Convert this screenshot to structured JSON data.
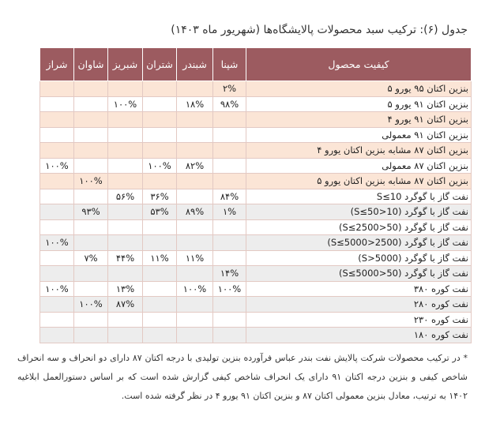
{
  "title": "جدول (۶): ترکیب سبد محصولات پالایشگاه‌ها (شهریور ماه ۱۴۰۳)",
  "table": {
    "header": [
      "کیفیت محصول",
      "شپنا",
      "شبندر",
      "شتران",
      "شبریز",
      "شاوان",
      "شراز"
    ],
    "rows": [
      [
        "بنزین اکتان ۹۵ یورو ۵",
        "۲%",
        null,
        null,
        null,
        null,
        null
      ],
      [
        "بنزین اکتان ۹۱ یورو ۵",
        "۹۸%",
        "۱۸%",
        null,
        "۱۰۰%",
        null,
        null
      ],
      [
        "بنزین اکتان ۹۱ یورو ۴",
        null,
        null,
        null,
        null,
        null,
        null
      ],
      [
        "بنزین اکتان ۹۱ معمولی",
        null,
        null,
        null,
        null,
        null,
        null
      ],
      [
        "بنزین اکتان ۸۷ مشابه بنزین اکتان یورو ۴",
        null,
        null,
        null,
        null,
        null,
        null
      ],
      [
        "بنزین اکتان ۸۷ معمولی",
        null,
        "۸۲%",
        "۱۰۰%",
        null,
        null,
        "۱۰۰%"
      ],
      [
        "بنزین اکتان ۸۷ مشابه بنزین اکتان یورو ۵",
        null,
        null,
        null,
        null,
        "۱۰۰%",
        null
      ],
      [
        "نفت گاز با گوگرد S≤10",
        "۸۴%",
        null,
        "۳۶%",
        "۵۶%",
        null,
        null
      ],
      [
        "نفت گاز با گوگرد (10<S≤50)",
        "۱%",
        "۸۹%",
        "۵۳%",
        null,
        "۹۳%",
        null
      ],
      [
        "نفت گاز با گوگرد (50<S≤2500)",
        null,
        null,
        null,
        null,
        null,
        null
      ],
      [
        "نفت گاز با گوگرد (2500<S≤5000)",
        null,
        null,
        null,
        null,
        null,
        "۱۰۰%"
      ],
      [
        "نفت گاز با گوگرد (S>5000)",
        null,
        "۱۱%",
        "۱۱%",
        "۴۴%",
        "۷%",
        null
      ],
      [
        "نفت گاز با گوگرد (50<S≤5000)",
        "۱۴%",
        null,
        null,
        null,
        null,
        null
      ],
      [
        "نفت کوره ۳۸۰",
        "۱۰۰%",
        "۱۰۰%",
        null,
        "۱۳%",
        null,
        "۱۰۰%"
      ],
      [
        "نفت کوره ۲۸۰",
        null,
        null,
        null,
        "۸۷%",
        "۱۰۰%",
        null
      ],
      [
        "نفت کوره ۲۳۰",
        null,
        null,
        null,
        null,
        null,
        null
      ],
      [
        "نفت کوره ۱۸۰",
        null,
        null,
        null,
        null,
        null,
        null
      ]
    ]
  },
  "footnote": "* در ترکیب محصولات شرکت پالایش نفت بندر عباس فرآورده بنزین تولیدی با درجه اکتان ۸۷ دارای دو انحراف و سه انحراف شاخص کیفی و بنزین درجه اکتان ۹۱ دارای یک انحراف شاخص کیفی گزارش شده است که بر اساس دستورالعمل ابلاغیه ۱۴۰۲ به ترتیب، معادل بنزین معمولی اکتان ۸۷ و بنزین اکتان ۹۱ یورو ۴ در نظر گرفته شده است."
}
